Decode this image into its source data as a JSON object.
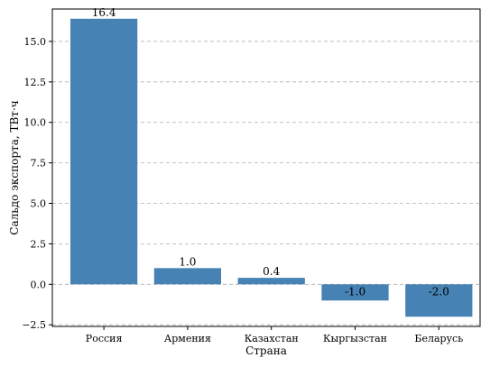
{
  "chart_data": {
    "type": "bar",
    "title": "",
    "xlabel": "Страна",
    "ylabel": "Сальдо экспорта, ТВт·ч",
    "categories": [
      "Россия",
      "Армения",
      "Казахстан",
      "Кыргызстан",
      "Беларусь"
    ],
    "values": [
      16.4,
      1.0,
      0.4,
      -1.0,
      -2.0
    ],
    "data_labels": [
      "16.4",
      "1.0",
      "0.4",
      "-1.0",
      "-2.0"
    ],
    "yticks": [
      -2.5,
      0.0,
      2.5,
      5.0,
      7.5,
      10.0,
      12.5,
      15.0
    ],
    "ytick_labels": [
      "−2.5",
      "0.0",
      "2.5",
      "5.0",
      "7.5",
      "10.0",
      "12.5",
      "15.0"
    ],
    "ylim": [
      -2.6,
      17.0
    ],
    "grid": "horizontal dashed",
    "bar_color": "#4682b4",
    "grid_color": "#b0b0b0"
  }
}
